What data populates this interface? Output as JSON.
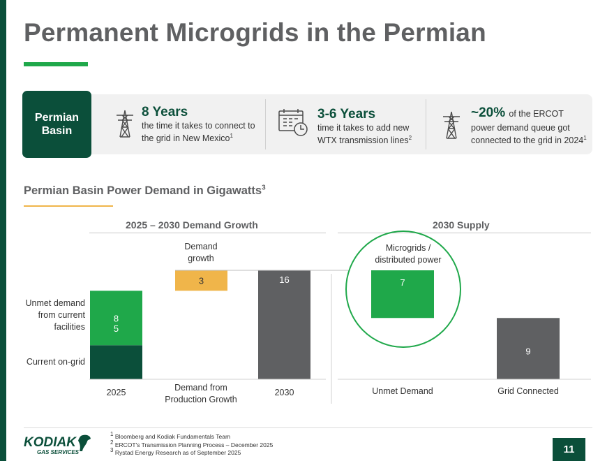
{
  "title": "Permanent Microgrids in the Permian",
  "basin_tag": "Permian\nBasin",
  "stats": [
    {
      "headline": "8 Years",
      "line1": "the time it takes to connect to",
      "line2": "the grid in New Mexico",
      "sup": "1"
    },
    {
      "headline": "3-6 Years",
      "line1": "time it takes to add new",
      "line2": "WTX transmission lines",
      "sup": "2"
    },
    {
      "headline": "~20%",
      "headline_suffix": "of the ERCOT",
      "line1": "power demand queue got",
      "line2": "connected to the grid in 2024",
      "sup": "1"
    }
  ],
  "section_title": "Permian Basin Power Demand in Gigawatts",
  "section_sup": "3",
  "footnotes": [
    {
      "num": "1",
      "text": "Bloomberg and Kodiak Fundamentals Team"
    },
    {
      "num": "2",
      "text": "ERCOT's Transmission Planning Process – December 2025"
    },
    {
      "num": "3",
      "text": "Rystad Energy Research as of September 2025"
    }
  ],
  "logo": {
    "name": "KODIAK",
    "sub": "GAS SERVICES"
  },
  "page_number": "11",
  "colors": {
    "dark_green": "#0b4f3a",
    "bright_green": "#1fa84a",
    "yellow": "#f0b54a",
    "gray": "#5f6062"
  },
  "chart_data": [
    {
      "type": "bar",
      "subtype": "waterfall",
      "title": "2025 – 2030 Demand Growth",
      "categories": [
        "2025",
        "Demand from\nProduction Growth",
        "2030"
      ],
      "series": [
        {
          "name": "Current on-grid",
          "values": [
            5,
            null,
            null
          ],
          "color": "#0b4f3a"
        },
        {
          "name": "Unmet demand from current facilities",
          "values": [
            8,
            null,
            null
          ],
          "color": "#1fa84a"
        },
        {
          "name": "Demand growth",
          "values": [
            null,
            3,
            null
          ],
          "color": "#f0b54a"
        },
        {
          "name": "Total",
          "values": [
            null,
            null,
            16
          ],
          "color": "#5f6062"
        }
      ],
      "labels": {
        "current": "Current on-grid",
        "unmet": "Unmet demand\nfrom current\nfacilities",
        "growth": "Demand\ngrowth"
      },
      "ylim": [
        0,
        16
      ]
    },
    {
      "type": "bar",
      "title": "2030 Supply",
      "categories": [
        "Unmet Demand",
        "Grid Connected"
      ],
      "values": [
        7,
        9
      ],
      "colors": [
        "#1fa84a",
        "#5f6062"
      ],
      "annotation": "Microgrids /\ndistributed power",
      "ylim": [
        0,
        16
      ]
    }
  ]
}
